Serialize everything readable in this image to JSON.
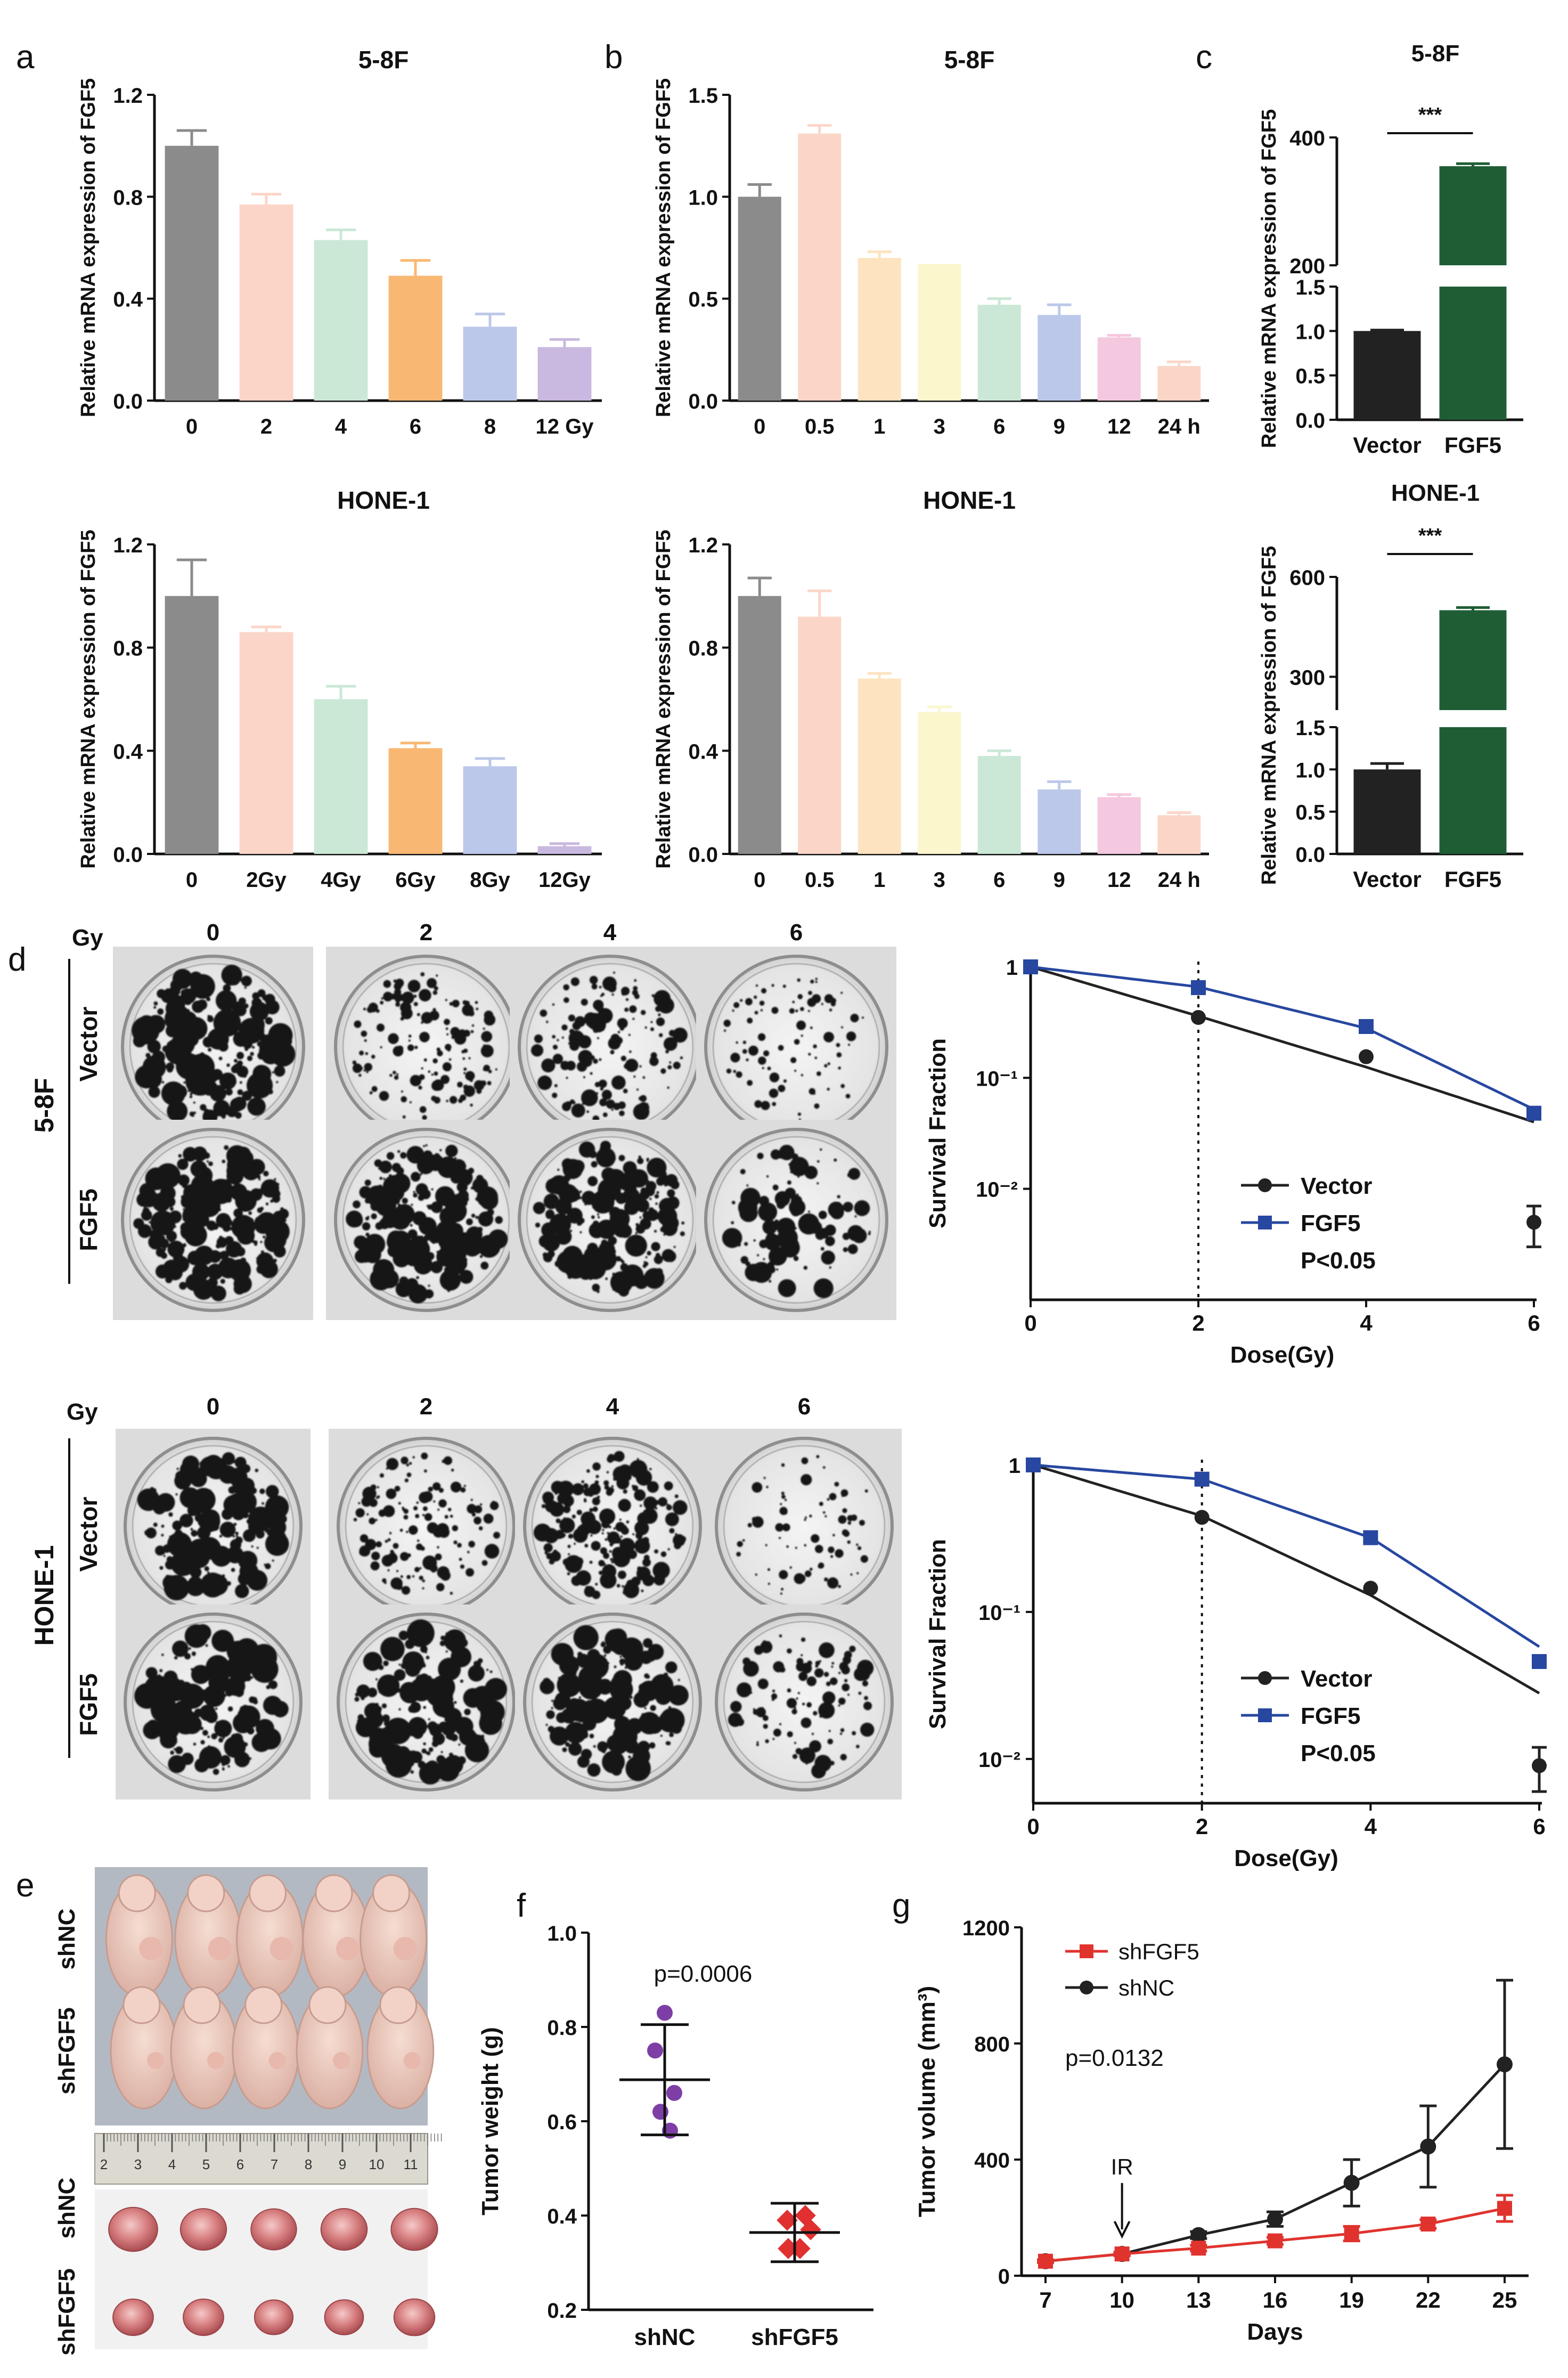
{
  "panel_letters": [
    "a",
    "b",
    "c",
    "d",
    "e",
    "f",
    "g"
  ],
  "colors": {
    "bar_palette": [
      "#8b8b8b",
      "#fbd6c8",
      "#cbe8d6",
      "#f8b873",
      "#bcc8ea",
      "#c9b8df",
      "#fde3c0",
      "#fbf6cc",
      "#f4c8df"
    ],
    "vector_bar": "#222222",
    "fgf5_bar": "#1f5e35",
    "vector_line": "#222222",
    "fgf5_line": "#2747a0",
    "shfgf5": "#e0332e",
    "shnc": "#222222",
    "purple": "#7d3fa5",
    "red_marker": "#e03030"
  },
  "panel_d": {
    "gy_label": "Gy",
    "doses": [
      "0",
      "2",
      "4",
      "6"
    ],
    "rows_5_8f": {
      "line": "5-8F",
      "vector": "Vector",
      "fgf5": "FGF5"
    },
    "rows_hone1": {
      "line": "HONE-1",
      "vector": "Vector",
      "fgf5": "FGF5"
    }
  },
  "panel_e": {
    "top_labels": [
      "shNC",
      "shFGF5"
    ],
    "bottom_labels": [
      "shNC",
      "shFGF5"
    ],
    "ruler_ticks": [
      "2",
      "3",
      "4",
      "5",
      "6",
      "7",
      "8",
      "9",
      "10",
      "11"
    ]
  },
  "chart_data": [
    {
      "id": "a-top",
      "type": "bar",
      "title": "5-8F",
      "ylabel": "Relative mRNA expression of FGF5",
      "categories": [
        "0",
        "2",
        "4",
        "6",
        "8",
        "12 Gy"
      ],
      "values": [
        1.0,
        0.77,
        0.63,
        0.49,
        0.29,
        0.21
      ],
      "errors": [
        0.06,
        0.04,
        0.04,
        0.06,
        0.05,
        0.03
      ],
      "ylim": [
        0,
        1.2
      ],
      "yticks": [
        "0.0",
        "0.4",
        "0.8",
        "1.2"
      ]
    },
    {
      "id": "a-bottom",
      "type": "bar",
      "title": "HONE-1",
      "ylabel": "Relative mRNA expression of FGF5",
      "categories": [
        "0",
        "2Gy",
        "4Gy",
        "6Gy",
        "8Gy",
        "12Gy"
      ],
      "values": [
        1.0,
        0.86,
        0.6,
        0.41,
        0.34,
        0.03
      ],
      "errors": [
        0.14,
        0.02,
        0.05,
        0.02,
        0.03,
        0.01
      ],
      "ylim": [
        0,
        1.2
      ],
      "yticks": [
        "0.0",
        "0.4",
        "0.8",
        "1.2"
      ]
    },
    {
      "id": "b-top",
      "type": "bar",
      "title": "5-8F",
      "ylabel": "Relative mRNA expression of FGF5",
      "categories": [
        "0",
        "0.5",
        "1",
        "3",
        "6",
        "9",
        "12",
        "24 h"
      ],
      "values": [
        1.0,
        1.31,
        0.7,
        0.67,
        0.47,
        0.42,
        0.31,
        0.17
      ],
      "errors": [
        0.06,
        0.04,
        0.03,
        0.0,
        0.03,
        0.05,
        0.01,
        0.02
      ],
      "ylim": [
        0,
        1.5
      ],
      "yticks": [
        "0.0",
        "0.5",
        "1.0",
        "1.5"
      ]
    },
    {
      "id": "b-bottom",
      "type": "bar",
      "title": "HONE-1",
      "ylabel": "Relative mRNA expression of FGF5",
      "categories": [
        "0",
        "0.5",
        "1",
        "3",
        "6",
        "9",
        "12",
        "24 h"
      ],
      "values": [
        1.0,
        0.92,
        0.68,
        0.55,
        0.38,
        0.25,
        0.22,
        0.15
      ],
      "errors": [
        0.07,
        0.1,
        0.02,
        0.02,
        0.02,
        0.03,
        0.01,
        0.01
      ],
      "ylim": [
        0,
        1.2
      ],
      "yticks": [
        "0.0",
        "0.4",
        "0.8",
        "1.2"
      ]
    },
    {
      "id": "c-top",
      "type": "bar",
      "title": "5-8F",
      "ylabel": "Relative mRNA expression of FGF5",
      "categories": [
        "Vector",
        "FGF5"
      ],
      "values": [
        1.0,
        355
      ],
      "errors": [
        0.01,
        4
      ],
      "significance": "***",
      "broken_axis": {
        "lower": [
          0,
          1.5
        ],
        "upper": [
          200,
          400
        ]
      },
      "yticks_lower": [
        "0.0",
        "0.5",
        "1.0",
        "1.5"
      ],
      "yticks_upper": [
        "200",
        "400"
      ]
    },
    {
      "id": "c-bottom",
      "type": "bar",
      "title": "HONE-1",
      "ylabel": "Relative mRNA expression of FGF5",
      "categories": [
        "Vector",
        "FGF5"
      ],
      "values": [
        1.0,
        500
      ],
      "errors": [
        0.07,
        8
      ],
      "significance": "***",
      "broken_axis": {
        "lower": [
          0,
          1.5
        ],
        "upper": [
          200,
          600
        ]
      },
      "yticks_lower": [
        "0.0",
        "0.5",
        "1.0",
        "1.5"
      ],
      "yticks_upper": [
        "300",
        "600"
      ]
    },
    {
      "id": "d-top",
      "type": "line",
      "title": "",
      "xlabel": "Dose(Gy)",
      "ylabel": "Survival Fraction",
      "x": [
        0,
        2,
        4,
        6
      ],
      "xticks": [
        "0",
        "2",
        "4",
        "6"
      ],
      "yscale": "log",
      "ylim": [
        0.001,
        1
      ],
      "yticks": [
        "1",
        "10⁻¹",
        "10⁻²"
      ],
      "series": [
        {
          "name": "Vector",
          "points": [
            1.0,
            0.35,
            0.155,
            0.005
          ],
          "curve": [
            1.0,
            0.36,
            0.125,
            0.04
          ],
          "errors": [
            0,
            0,
            0,
            0.002
          ]
        },
        {
          "name": "FGF5",
          "points": [
            1.0,
            0.65,
            0.29,
            0.048
          ],
          "curve": [
            1.0,
            0.66,
            0.28,
            0.052
          ],
          "errors": [
            0,
            0,
            0,
            0
          ]
        }
      ],
      "annotation": "P<0.05",
      "dotted_at_x": 2
    },
    {
      "id": "d-bottom",
      "type": "line",
      "title": "",
      "xlabel": "Dose(Gy)",
      "ylabel": "Survival Fraction",
      "x": [
        0,
        2,
        4,
        6
      ],
      "xticks": [
        "0",
        "2",
        "4",
        "6"
      ],
      "yscale": "log",
      "ylim": [
        0.005,
        1
      ],
      "yticks": [
        "1",
        "10⁻¹",
        "10⁻²"
      ],
      "series": [
        {
          "name": "Vector",
          "points": [
            1.0,
            0.44,
            0.145,
            0.009
          ],
          "curve": [
            1.0,
            0.45,
            0.13,
            0.028
          ],
          "errors": [
            0,
            0,
            0,
            0.003
          ]
        },
        {
          "name": "FGF5",
          "points": [
            1.0,
            0.8,
            0.32,
            0.046
          ],
          "curve": [
            1.0,
            0.8,
            0.32,
            0.058
          ],
          "errors": [
            0,
            0,
            0,
            0
          ]
        }
      ],
      "annotation": "P<0.05",
      "dotted_at_x": 2
    },
    {
      "id": "f",
      "type": "scatter",
      "title": "",
      "ylabel": "Tumor weight (g)",
      "categories": [
        "shNC",
        "shFGF5"
      ],
      "groups": [
        {
          "name": "shNC",
          "values": [
            0.83,
            0.75,
            0.66,
            0.62,
            0.58
          ],
          "mean": 0.688,
          "sd": 0.117
        },
        {
          "name": "shFGF5",
          "values": [
            0.4,
            0.39,
            0.37,
            0.33,
            0.33
          ],
          "mean": 0.364,
          "sd": 0.062
        }
      ],
      "annotation": "p=0.0006",
      "ylim": [
        0.2,
        1.0
      ],
      "yticks": [
        "0.2",
        "0.4",
        "0.6",
        "0.8",
        "1.0"
      ]
    },
    {
      "id": "g",
      "type": "line",
      "title": "",
      "xlabel": "Days",
      "ylabel": "Tumor volume (mm³)",
      "x": [
        7,
        10,
        13,
        16,
        19,
        22,
        25
      ],
      "xticks": [
        "7",
        "10",
        "13",
        "16",
        "19",
        "22",
        "25"
      ],
      "ylim": [
        0,
        1200
      ],
      "yticks": [
        "0",
        "400",
        "800",
        "1200"
      ],
      "series": [
        {
          "name": "shFGF5",
          "values": [
            50,
            75,
            95,
            120,
            145,
            178,
            232
          ],
          "errors": [
            5,
            6,
            10,
            12,
            25,
            15,
            45
          ]
        },
        {
          "name": "shNC",
          "values": [
            50,
            75,
            140,
            195,
            320,
            445,
            728
          ],
          "errors": [
            5,
            6,
            12,
            25,
            80,
            140,
            290
          ]
        }
      ],
      "annotation": "p=0.0132",
      "arrow_label": "IR",
      "arrow_at_x": 10
    }
  ]
}
